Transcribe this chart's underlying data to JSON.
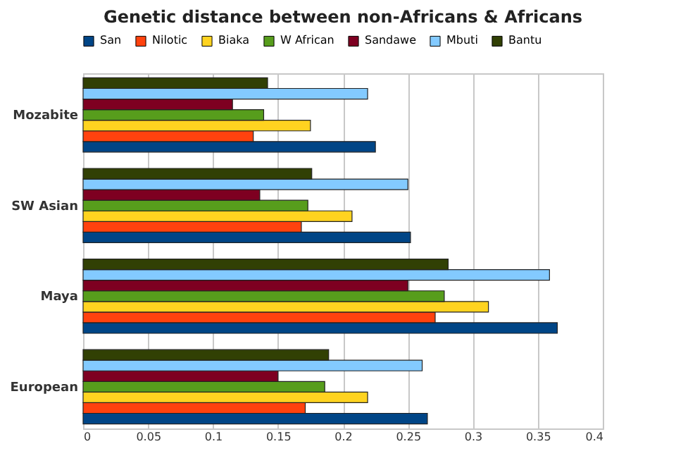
{
  "chart_data": {
    "type": "bar",
    "orientation": "horizontal",
    "title": "Genetic distance between non-Africans & Africans",
    "categories": [
      "Mozabite",
      "SW Asian",
      "Maya",
      "European"
    ],
    "series": [
      {
        "name": "San",
        "color": "#004586",
        "values": [
          0.225,
          0.252,
          0.365,
          0.265
        ]
      },
      {
        "name": "Nilotic",
        "color": "#ff420e",
        "values": [
          0.131,
          0.168,
          0.271,
          0.171
        ]
      },
      {
        "name": "Biaka",
        "color": "#ffd320",
        "values": [
          0.175,
          0.207,
          0.312,
          0.219
        ]
      },
      {
        "name": "W African",
        "color": "#579d1c",
        "values": [
          0.139,
          0.173,
          0.278,
          0.186
        ]
      },
      {
        "name": "Sandawe",
        "color": "#7e0021",
        "values": [
          0.115,
          0.136,
          0.25,
          0.15
        ]
      },
      {
        "name": "Mbuti",
        "color": "#83caff",
        "values": [
          0.219,
          0.25,
          0.359,
          0.261
        ]
      },
      {
        "name": "Bantu",
        "color": "#314004",
        "values": [
          0.142,
          0.176,
          0.281,
          0.189
        ]
      }
    ],
    "xlim": [
      0,
      0.4
    ],
    "xticks": [
      0,
      0.05,
      0.1,
      0.15,
      0.2,
      0.25,
      0.3,
      0.35,
      0.4
    ],
    "grid": "x",
    "legend": "top"
  }
}
